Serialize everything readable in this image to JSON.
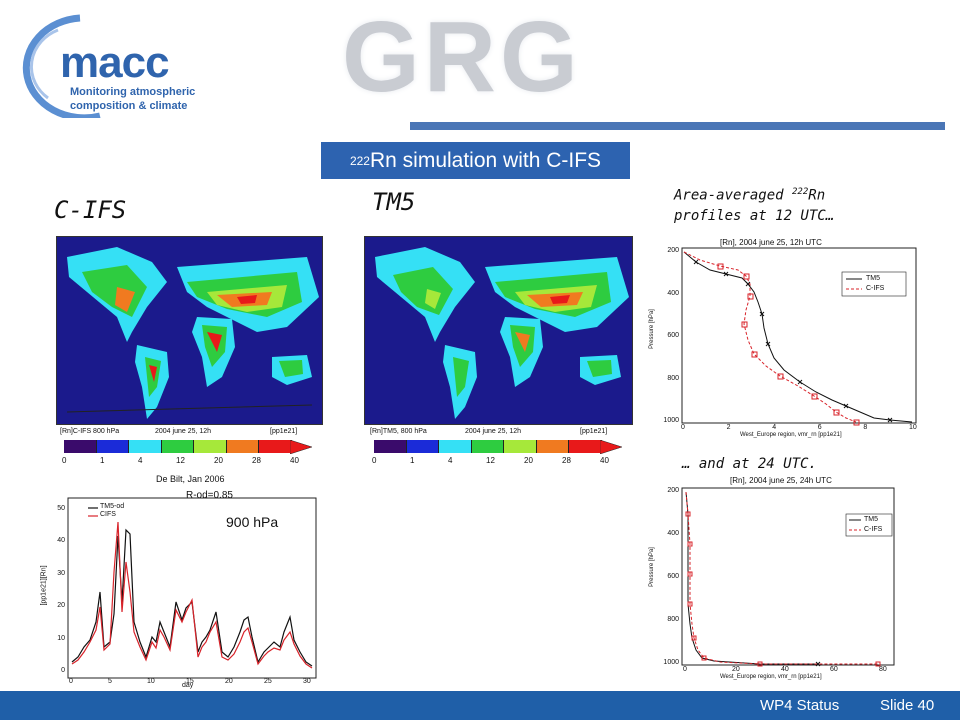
{
  "header": {
    "logo_text": "macc",
    "logo_subtitle_1": "Monitoring atmospheric",
    "logo_subtitle_2": "composition & climate",
    "grg_text": "GRG"
  },
  "title": {
    "superscript": "222",
    "text": "Rn simulation with C-IFS"
  },
  "labels": {
    "cifs": "C-IFS",
    "tm5": "TM5",
    "profiles_note_1a": "Area-averaged ",
    "profiles_note_1sup": "222",
    "profiles_note_1b": "Rn",
    "profiles_note_2": "profiles at 12 UTC…",
    "and_at_24": "… and at 24 UTC."
  },
  "maps": {
    "cifs_colorbar_title": "[Rn]C-IFS 800 hPa",
    "tm5_colorbar_title": "[Rn]TM5, 800 hPa",
    "date": "2004 june 25, 12h",
    "units": "[pp1e21]",
    "tick_labels": [
      "0",
      "1",
      "4",
      "12",
      "20",
      "28",
      "40"
    ],
    "colors": [
      "#3a0b6b",
      "#1b2bd8",
      "#35e0f5",
      "#2ecc40",
      "#a6e83a",
      "#f07a20",
      "#e8191a"
    ]
  },
  "timeseries": {
    "title": "De Bilt, Jan 2006",
    "corr": "R-od=0.85",
    "level": "900 hPa",
    "ylabel": "[pp1e21][Rn]",
    "xlabel": "day",
    "legend": [
      "TM5-od",
      "CIFS"
    ],
    "y_ticks": [
      "0",
      "10",
      "20",
      "30",
      "40",
      "50"
    ],
    "x_ticks": [
      "0",
      "5",
      "10",
      "15",
      "20",
      "25",
      "30"
    ]
  },
  "profile_12": {
    "title": "[Rn], 2004 june 25, 12h UTC",
    "xlabel": "West_Europe region, vmr_rn [pp1e21]",
    "ylabel": "Pressure [hPa]",
    "legend": [
      "TM5",
      "C-IFS"
    ],
    "y_ticks": [
      "200",
      "400",
      "600",
      "800",
      "1000"
    ],
    "x_ticks": [
      "0",
      "2",
      "4",
      "6",
      "8",
      "10"
    ]
  },
  "profile_24": {
    "title": "[Rn], 2004 june 25, 24h UTC",
    "xlabel": "West_Europe region, vmr_rn [pp1e21]",
    "ylabel": "Pressure [hPa]",
    "legend": [
      "TM5",
      "C-IFS"
    ],
    "y_ticks": [
      "200",
      "400",
      "600",
      "800",
      "1000"
    ],
    "x_ticks": [
      "0",
      "20",
      "40",
      "60",
      "80"
    ]
  },
  "footer": {
    "status": "WP4 Status",
    "slide": "Slide 40"
  },
  "colors": {
    "accent": "#2d63b0",
    "tm5_line": "#111111",
    "cifs_line": "#d8232a"
  }
}
